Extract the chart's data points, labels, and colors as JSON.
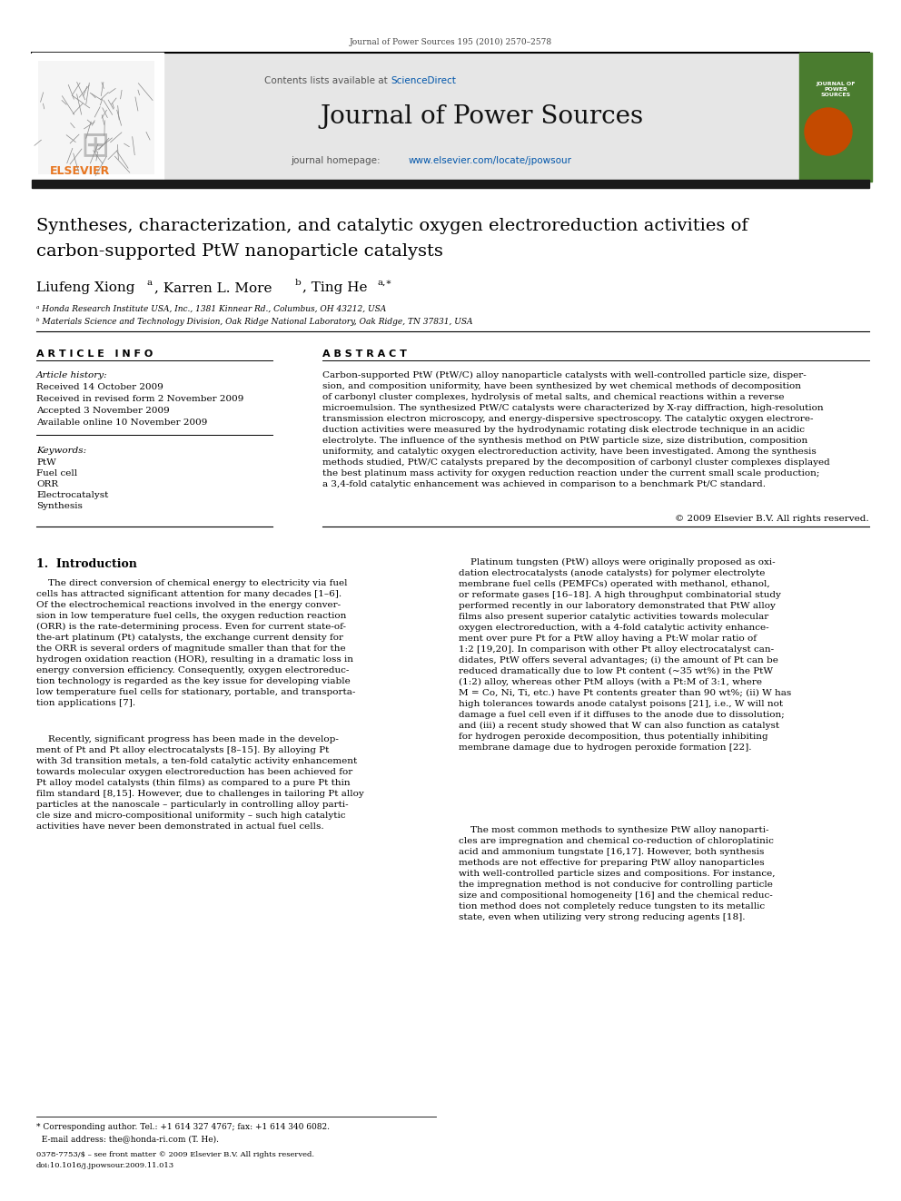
{
  "page_width": 9.92,
  "page_height": 13.23,
  "dpi": 100,
  "bg_color": "#ffffff",
  "journal_ref": "Journal of Power Sources 195 (2010) 2570–2578",
  "header_bg": "#e6e6e6",
  "header_sciencedirect_color": "#0055aa",
  "journal_title": "Journal of Power Sources",
  "journal_homepage_label": "journal homepage: ",
  "journal_homepage_url": "www.elsevier.com/locate/jpowsour",
  "journal_homepage_color": "#0055aa",
  "paper_title_line1": "Syntheses, characterization, and catalytic oxygen electroreduction activities of",
  "paper_title_line2": "carbon-supported PtW nanoparticle catalysts",
  "affil_a": "ᵃ Honda Research Institute USA, Inc., 1381 Kinnear Rd., Columbus, OH 43212, USA",
  "affil_b": "ᵇ Materials Science and Technology Division, Oak Ridge National Laboratory, Oak Ridge, TN 37831, USA",
  "article_info_title": "A R T I C L E   I N F O",
  "article_history_label": "Article history:",
  "article_history_lines": [
    "Received 14 October 2009",
    "Received in revised form 2 November 2009",
    "Accepted 3 November 2009",
    "Available online 10 November 2009"
  ],
  "keywords_label": "Keywords:",
  "keywords_lines": [
    "PtW",
    "Fuel cell",
    "ORR",
    "Electrocatalyst",
    "Synthesis"
  ],
  "abstract_title": "A B S T R A C T",
  "abstract_text": "Carbon-supported PtW (PtW/C) alloy nanoparticle catalysts with well-controlled particle size, disper-\nsion, and composition uniformity, have been synthesized by wet chemical methods of decomposition\nof carbonyl cluster complexes, hydrolysis of metal salts, and chemical reactions within a reverse\nmicroemulsion. The synthesized PtW/C catalysts were characterized by X-ray diffraction, high-resolution\ntransmission electron microscopy, and energy-dispersive spectroscopy. The catalytic oxygen electrore-\nduction activities were measured by the hydrodynamic rotating disk electrode technique in an acidic\nelectrolyte. The influence of the synthesis method on PtW particle size, size distribution, composition\nuniformity, and catalytic oxygen electroreduction activity, have been investigated. Among the synthesis\nmethods studied, PtW/C catalysts prepared by the decomposition of carbonyl cluster complexes displayed\nthe best platinum mass activity for oxygen reduction reaction under the current small scale production;\na 3,4-fold catalytic enhancement was achieved in comparison to a benchmark Pt/C standard.",
  "abstract_copyright": "© 2009 Elsevier B.V. All rights reserved.",
  "section1_title": "1.  Introduction",
  "intro_left_para1": "    The direct conversion of chemical energy to electricity via fuel\ncells has attracted significant attention for many decades [1–6].\nOf the electrochemical reactions involved in the energy conver-\nsion in low temperature fuel cells, the oxygen reduction reaction\n(ORR) is the rate-determining process. Even for current state-of-\nthe-art platinum (Pt) catalysts, the exchange current density for\nthe ORR is several orders of magnitude smaller than that for the\nhydrogen oxidation reaction (HOR), resulting in a dramatic loss in\nenergy conversion efficiency. Consequently, oxygen electroreduc-\ntion technology is regarded as the key issue for developing viable\nlow temperature fuel cells for stationary, portable, and transporta-\ntion applications [7].",
  "intro_left_para2": "    Recently, significant progress has been made in the develop-\nment of Pt and Pt alloy electrocatalysts [8–15]. By alloying Pt\nwith 3d transition metals, a ten-fold catalytic activity enhancement\ntowards molecular oxygen electroreduction has been achieved for\nPt alloy model catalysts (thin films) as compared to a pure Pt thin\nfilm standard [8,15]. However, due to challenges in tailoring Pt alloy\nparticles at the nanoscale – particularly in controlling alloy parti-\ncle size and micro-compositional uniformity – such high catalytic\nactivities have never been demonstrated in actual fuel cells.",
  "intro_right_para1": "    Platinum tungsten (PtW) alloys were originally proposed as oxi-\ndation electrocatalysts (anode catalysts) for polymer electrolyte\nmembrane fuel cells (PEMFCs) operated with methanol, ethanol,\nor reformate gases [16–18]. A high throughput combinatorial study\nperformed recently in our laboratory demonstrated that PtW alloy\nfilms also present superior catalytic activities towards molecular\noxygen electroreduction, with a 4-fold catalytic activity enhance-\nment over pure Pt for a PtW alloy having a Pt:W molar ratio of\n1:2 [19,20]. In comparison with other Pt alloy electrocatalyst can-\ndidates, PtW offers several advantages; (i) the amount of Pt can be\nreduced dramatically due to low Pt content (~35 wt%) in the PtW\n(1:2) alloy, whereas other PtM alloys (with a Pt:M of 3:1, where\nM = Co, Ni, Ti, etc.) have Pt contents greater than 90 wt%; (ii) W has\nhigh tolerances towards anode catalyst poisons [21], i.e., W will not\ndamage a fuel cell even if it diffuses to the anode due to dissolution;\nand (iii) a recent study showed that W can also function as catalyst\nfor hydrogen peroxide decomposition, thus potentially inhibiting\nmembrane damage due to hydrogen peroxide formation [22].",
  "intro_right_para2": "    The most common methods to synthesize PtW alloy nanoparti-\ncles are impregnation and chemical co-reduction of chloroplatinic\nacid and ammonium tungstate [16,17]. However, both synthesis\nmethods are not effective for preparing PtW alloy nanoparticles\nwith well-controlled particle sizes and compositions. For instance,\nthe impregnation method is not conducive for controlling particle\nsize and compositional homogeneity [16] and the chemical reduc-\ntion method does not completely reduce tungsten to its metallic\nstate, even when utilizing very strong reducing agents [18].",
  "footer_line1": "* Corresponding author. Tel.: +1 614 327 4767; fax: +1 614 340 6082.",
  "footer_line2": "  E-mail address: the@honda-ri.com (T. He).",
  "footer_issn1": "0378-7753/$ – see front matter © 2009 Elsevier B.V. All rights reserved.",
  "footer_issn2": "doi:10.1016/j.jpowsour.2009.11.013",
  "elsevier_color": "#e87722",
  "cover_green": "#4a7c2f",
  "cover_orange": "#c44a00",
  "black_bar": "#1a1a1a",
  "blue_link": "#0055aa"
}
